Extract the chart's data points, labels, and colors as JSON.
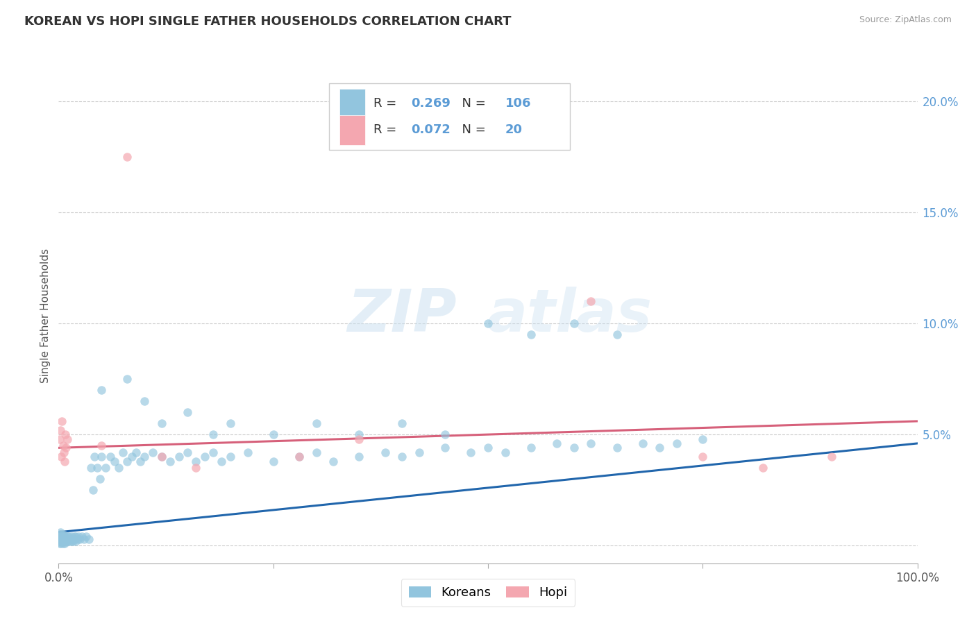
{
  "title": "KOREAN VS HOPI SINGLE FATHER HOUSEHOLDS CORRELATION CHART",
  "source": "Source: ZipAtlas.com",
  "ylabel": "Single Father Households",
  "xlim": [
    0.0,
    1.0
  ],
  "ylim": [
    -0.008,
    0.215
  ],
  "korean_R": 0.269,
  "korean_N": 106,
  "hopi_R": 0.072,
  "hopi_N": 20,
  "korean_color": "#92c5de",
  "hopi_color": "#f4a7b0",
  "korean_line_color": "#2166ac",
  "hopi_line_color": "#d6607a",
  "background_color": "#ffffff",
  "grid_color": "#cccccc",
  "title_color": "#333333",
  "axis_label_color": "#5b9bd5",
  "legend_korean_label": "Koreans",
  "legend_hopi_label": "Hopi",
  "korean_x": [
    0.001,
    0.001,
    0.001,
    0.002,
    0.002,
    0.002,
    0.003,
    0.003,
    0.003,
    0.004,
    0.004,
    0.005,
    0.005,
    0.005,
    0.006,
    0.006,
    0.007,
    0.007,
    0.008,
    0.008,
    0.009,
    0.01,
    0.01,
    0.011,
    0.012,
    0.013,
    0.014,
    0.015,
    0.015,
    0.016,
    0.017,
    0.018,
    0.019,
    0.02,
    0.02,
    0.022,
    0.023,
    0.025,
    0.027,
    0.03,
    0.032,
    0.035,
    0.038,
    0.04,
    0.042,
    0.045,
    0.048,
    0.05,
    0.055,
    0.06,
    0.065,
    0.07,
    0.075,
    0.08,
    0.085,
    0.09,
    0.095,
    0.1,
    0.11,
    0.12,
    0.13,
    0.14,
    0.15,
    0.16,
    0.17,
    0.18,
    0.19,
    0.2,
    0.22,
    0.25,
    0.28,
    0.3,
    0.32,
    0.35,
    0.38,
    0.4,
    0.42,
    0.45,
    0.48,
    0.5,
    0.52,
    0.55,
    0.58,
    0.6,
    0.62,
    0.65,
    0.68,
    0.7,
    0.72,
    0.75,
    0.05,
    0.08,
    0.1,
    0.12,
    0.15,
    0.18,
    0.2,
    0.25,
    0.3,
    0.35,
    0.4,
    0.45,
    0.5,
    0.55,
    0.6,
    0.65
  ],
  "korean_y": [
    0.001,
    0.003,
    0.005,
    0.002,
    0.004,
    0.006,
    0.001,
    0.003,
    0.005,
    0.002,
    0.004,
    0.001,
    0.003,
    0.005,
    0.002,
    0.004,
    0.001,
    0.003,
    0.002,
    0.004,
    0.003,
    0.002,
    0.004,
    0.003,
    0.004,
    0.002,
    0.003,
    0.002,
    0.004,
    0.003,
    0.002,
    0.004,
    0.003,
    0.002,
    0.004,
    0.003,
    0.004,
    0.003,
    0.004,
    0.003,
    0.004,
    0.003,
    0.035,
    0.025,
    0.04,
    0.035,
    0.03,
    0.04,
    0.035,
    0.04,
    0.038,
    0.035,
    0.042,
    0.038,
    0.04,
    0.042,
    0.038,
    0.04,
    0.042,
    0.04,
    0.038,
    0.04,
    0.042,
    0.038,
    0.04,
    0.042,
    0.038,
    0.04,
    0.042,
    0.038,
    0.04,
    0.042,
    0.038,
    0.04,
    0.042,
    0.04,
    0.042,
    0.044,
    0.042,
    0.044,
    0.042,
    0.044,
    0.046,
    0.044,
    0.046,
    0.044,
    0.046,
    0.044,
    0.046,
    0.048,
    0.07,
    0.075,
    0.065,
    0.055,
    0.06,
    0.05,
    0.055,
    0.05,
    0.055,
    0.05,
    0.055,
    0.05,
    0.1,
    0.095,
    0.1,
    0.095
  ],
  "hopi_x": [
    0.001,
    0.002,
    0.003,
    0.004,
    0.005,
    0.006,
    0.007,
    0.008,
    0.009,
    0.01,
    0.05,
    0.08,
    0.12,
    0.16,
    0.28,
    0.35,
    0.62,
    0.75,
    0.82,
    0.9
  ],
  "hopi_y": [
    0.048,
    0.052,
    0.04,
    0.056,
    0.045,
    0.042,
    0.038,
    0.05,
    0.044,
    0.048,
    0.045,
    0.175,
    0.04,
    0.035,
    0.04,
    0.048,
    0.11,
    0.04,
    0.035,
    0.04
  ]
}
